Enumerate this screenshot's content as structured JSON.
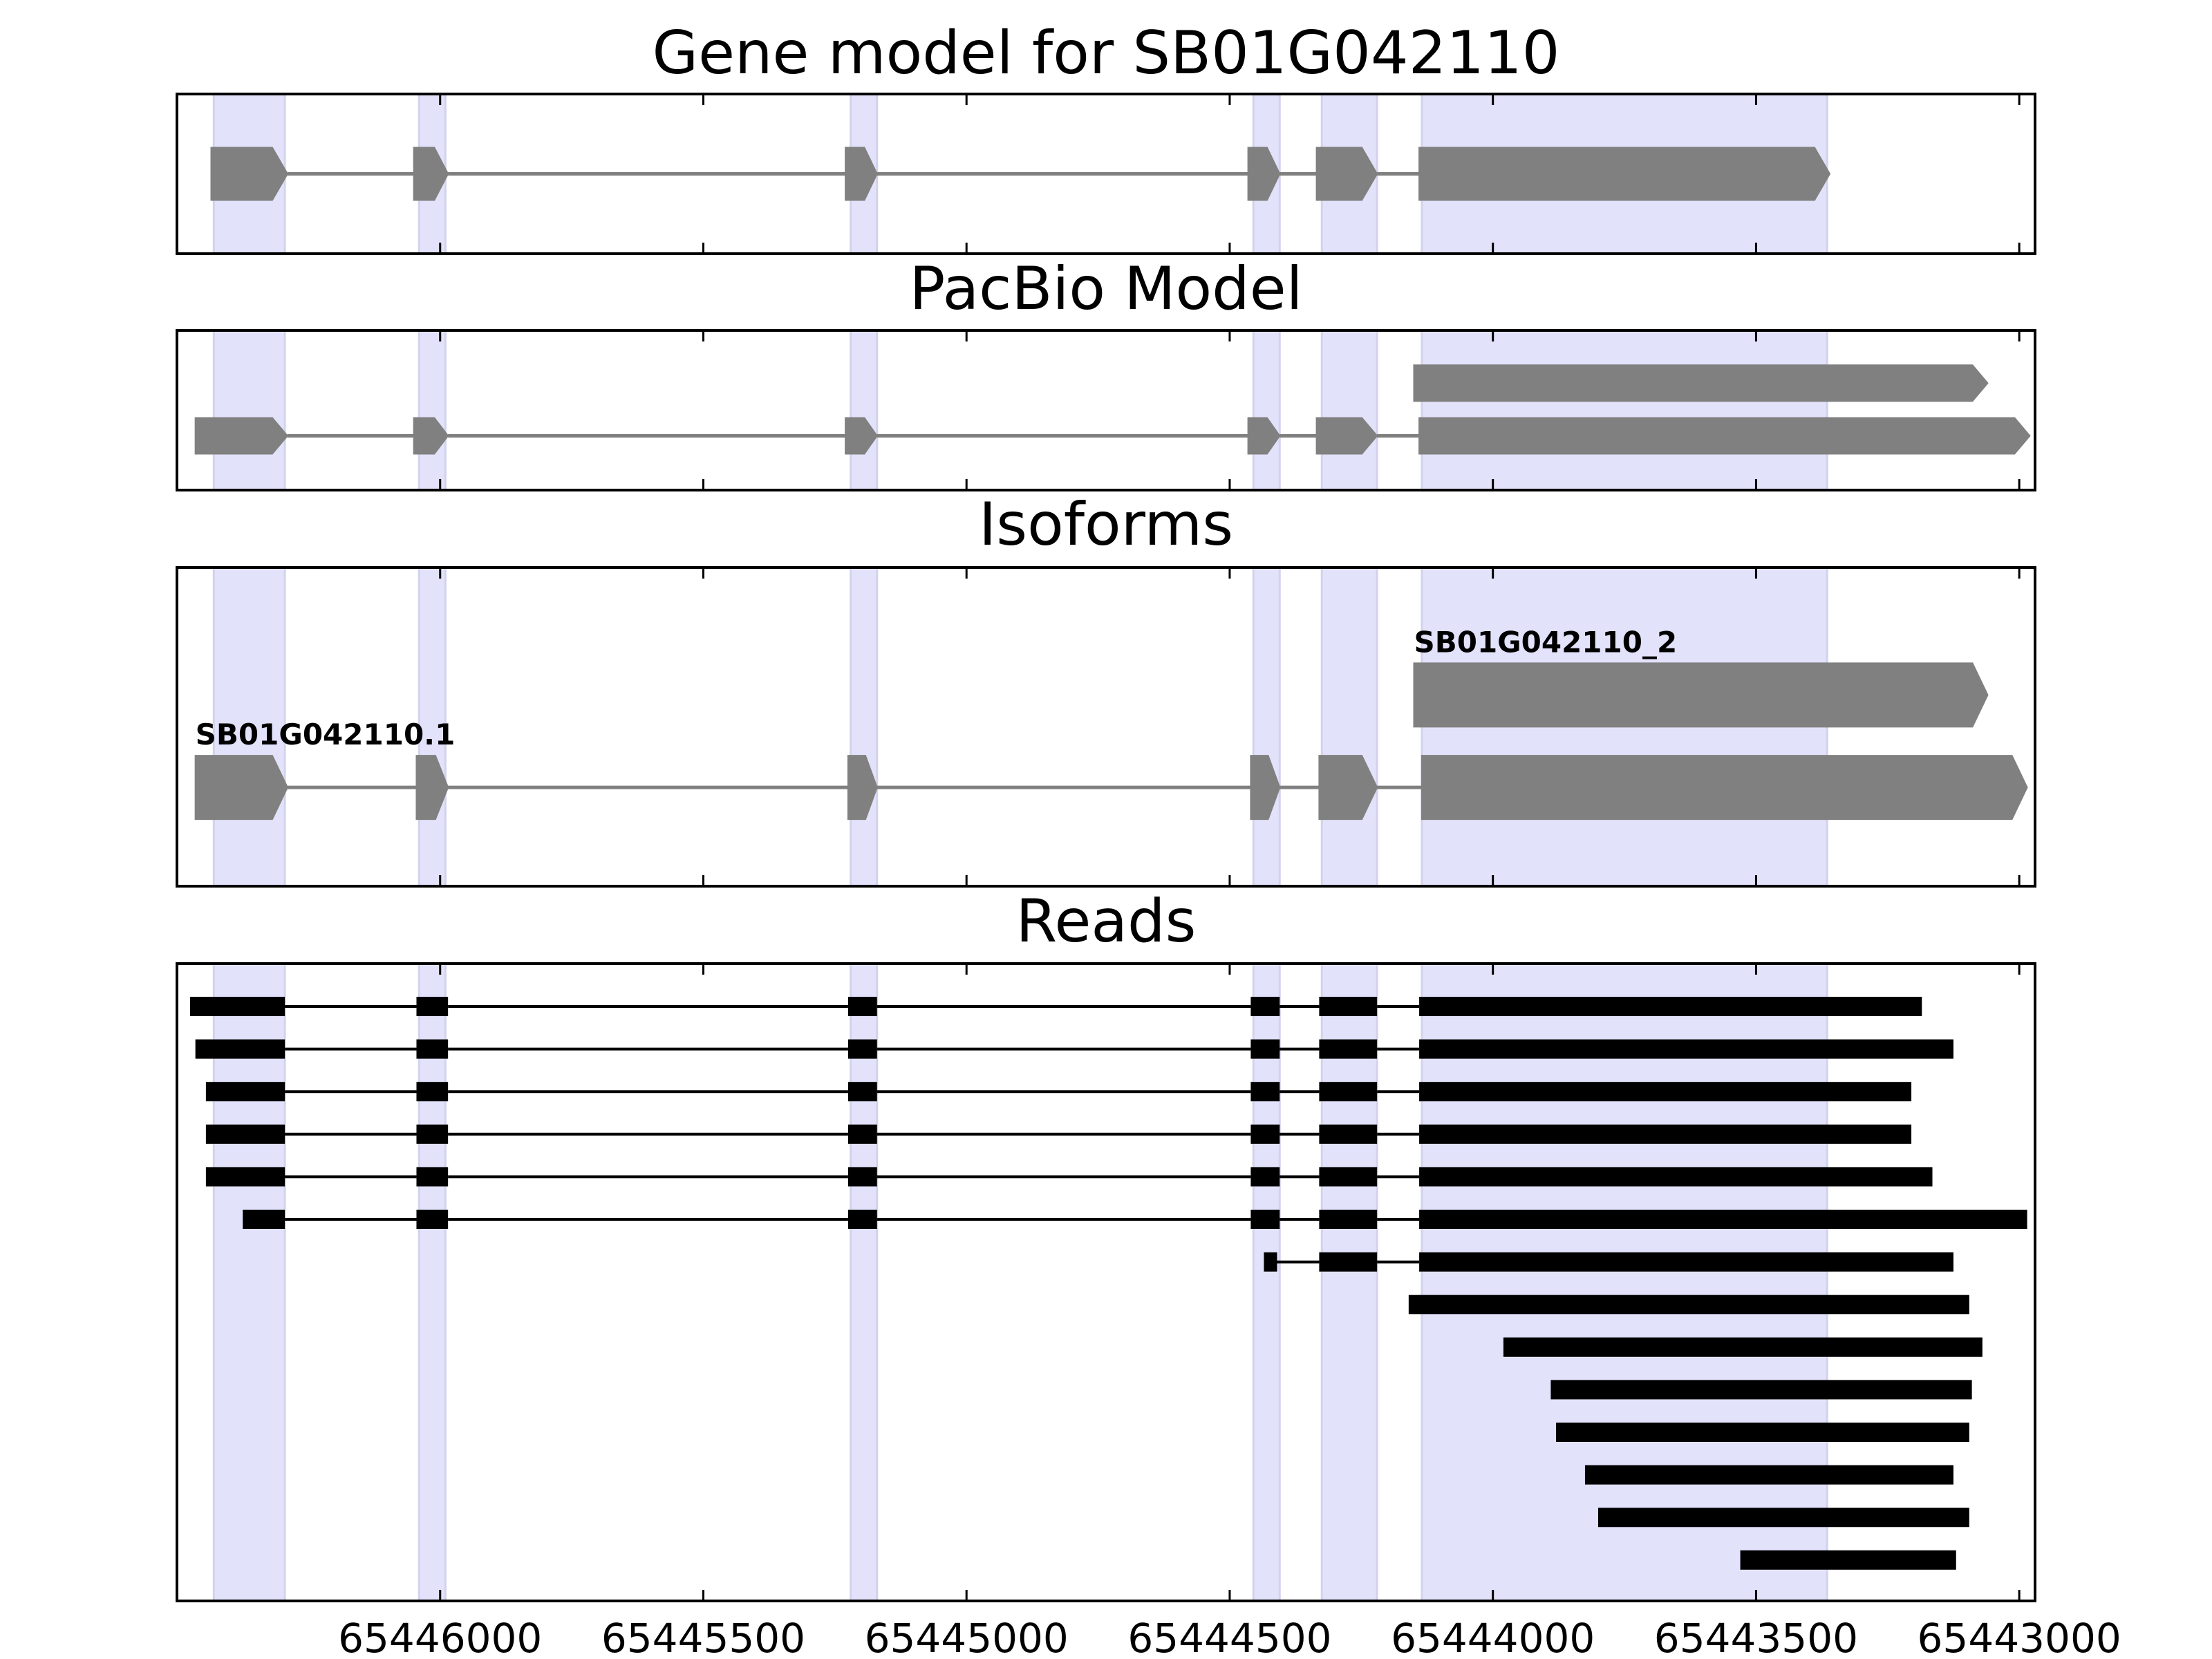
{
  "figure_title": "Gene model for SB01G042110",
  "colors": {
    "highlight": "#e2e2fb",
    "feature": "#808080",
    "read": "#000000",
    "frame": "#000000"
  },
  "chart_data": {
    "type": "gene_track",
    "x_axis": {
      "direction": "reversed",
      "range": [
        65446500,
        65442970
      ],
      "ticks": [
        65446000,
        65445500,
        65445000,
        65444500,
        65444000,
        65443500,
        65443000
      ]
    },
    "highlight_regions": [
      [
        65446430,
        65446295
      ],
      [
        65446040,
        65445990
      ],
      [
        65445220,
        65445170
      ],
      [
        65444455,
        65444405
      ],
      [
        65444325,
        65444220
      ],
      [
        65444135,
        65443365
      ]
    ],
    "panels": [
      {
        "id": "gene-model",
        "title": "Gene model for SB01G042110",
        "transcripts": [
          {
            "row": 0.5,
            "label": "",
            "exons": [
              [
                65446435,
                65446290
              ],
              [
                65446050,
                65445985
              ],
              [
                65445230,
                65445170
              ],
              [
                65444465,
                65444405
              ],
              [
                65444335,
                65444220
              ],
              [
                65444140,
                65443360
              ]
            ]
          }
        ]
      },
      {
        "id": "pacbio-model",
        "title": "PacBio Model",
        "transcripts": [
          {
            "row": 0.33,
            "label": "",
            "exons": [
              [
                65444150,
                65443060
              ]
            ]
          },
          {
            "row": 0.66,
            "label": "",
            "exons": [
              [
                65446465,
                65446290
              ],
              [
                65446050,
                65445985
              ],
              [
                65445230,
                65445170
              ],
              [
                65444465,
                65444405
              ],
              [
                65444335,
                65444220
              ],
              [
                65444140,
                65442980
              ]
            ]
          }
        ]
      },
      {
        "id": "isoforms",
        "title": "Isoforms",
        "transcripts": [
          {
            "row": 0.4,
            "label": "SB01G042110_2",
            "exons": [
              [
                65444150,
                65443060
              ]
            ]
          },
          {
            "row": 0.69,
            "label": "SB01G042110.1",
            "exons": [
              [
                65446465,
                65446290
              ],
              [
                65446045,
                65445985
              ],
              [
                65445225,
                65445170
              ],
              [
                65444460,
                65444405
              ],
              [
                65444330,
                65444220
              ],
              [
                65444135,
                65442985
              ]
            ]
          }
        ]
      },
      {
        "id": "reads",
        "title": "Reads",
        "reads": [
          {
            "exons": [
              [
                65446475,
                65446295
              ],
              [
                65446045,
                65445985
              ],
              [
                65445225,
                65445170
              ],
              [
                65444460,
                65444405
              ],
              [
                65444330,
                65444220
              ],
              [
                65444140,
                65443185
              ]
            ]
          },
          {
            "exons": [
              [
                65446465,
                65446295
              ],
              [
                65446045,
                65445985
              ],
              [
                65445225,
                65445170
              ],
              [
                65444460,
                65444405
              ],
              [
                65444330,
                65444220
              ],
              [
                65444140,
                65443125
              ]
            ]
          },
          {
            "exons": [
              [
                65446445,
                65446295
              ],
              [
                65446045,
                65445985
              ],
              [
                65445225,
                65445170
              ],
              [
                65444460,
                65444405
              ],
              [
                65444330,
                65444220
              ],
              [
                65444140,
                65443205
              ]
            ]
          },
          {
            "exons": [
              [
                65446445,
                65446295
              ],
              [
                65446045,
                65445985
              ],
              [
                65445225,
                65445170
              ],
              [
                65444460,
                65444405
              ],
              [
                65444330,
                65444220
              ],
              [
                65444140,
                65443205
              ]
            ]
          },
          {
            "exons": [
              [
                65446445,
                65446295
              ],
              [
                65446045,
                65445985
              ],
              [
                65445225,
                65445170
              ],
              [
                65444460,
                65444405
              ],
              [
                65444330,
                65444220
              ],
              [
                65444140,
                65443165
              ]
            ]
          },
          {
            "exons": [
              [
                65446375,
                65446295
              ],
              [
                65446045,
                65445985
              ],
              [
                65445225,
                65445170
              ],
              [
                65444460,
                65444405
              ],
              [
                65444330,
                65444220
              ],
              [
                65444140,
                65442985
              ]
            ]
          },
          {
            "exons": [
              [
                65444435,
                65444410
              ],
              [
                65444330,
                65444220
              ],
              [
                65444140,
                65443125
              ]
            ]
          },
          {
            "exons": [
              [
                65444160,
                65443095
              ]
            ]
          },
          {
            "exons": [
              [
                65443980,
                65443070
              ]
            ]
          },
          {
            "exons": [
              [
                65443890,
                65443090
              ]
            ]
          },
          {
            "exons": [
              [
                65443880,
                65443095
              ]
            ]
          },
          {
            "exons": [
              [
                65443825,
                65443125
              ]
            ]
          },
          {
            "exons": [
              [
                65443800,
                65443095
              ]
            ]
          },
          {
            "exons": [
              [
                65443530,
                65443120
              ]
            ]
          }
        ]
      }
    ]
  }
}
